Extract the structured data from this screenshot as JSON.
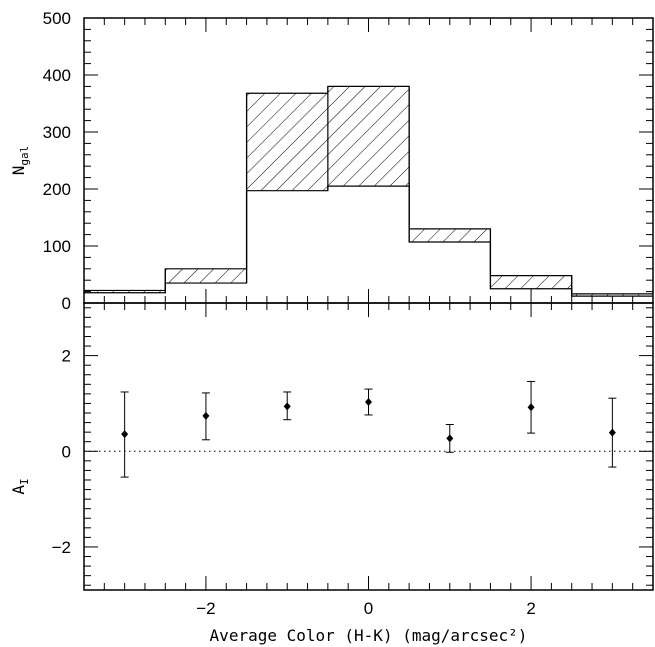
{
  "chart_data": [
    {
      "type": "bar",
      "panel": "top",
      "ylabel": "N",
      "ylabel_sub": "gal",
      "ylim": [
        0,
        500
      ],
      "yticks": [
        0,
        100,
        200,
        300,
        400,
        500
      ],
      "ytick_labels": [
        "0",
        "100",
        "200",
        "300",
        "400",
        "500"
      ],
      "xlim": [
        -3.5,
        3.5
      ],
      "bin_edges": [
        -3.5,
        -2.5,
        -1.5,
        -0.5,
        0.5,
        1.5,
        2.5,
        3.5
      ],
      "series": [
        {
          "values": [
            18,
            35,
            197,
            205,
            107,
            25,
            12
          ]
        },
        {
          "values": [
            22,
            60,
            368,
            380,
            130,
            48,
            16
          ],
          "hatched_above_first": true
        }
      ]
    },
    {
      "type": "scatter",
      "panel": "bottom",
      "xlabel": "Average Color (H-K) (mag/arcsec²)",
      "ylabel": "A",
      "ylabel_sub": "I",
      "xlim": [
        -3.5,
        3.5
      ],
      "ylim": [
        -2.9,
        3.1
      ],
      "xticks": [
        -2,
        0,
        2
      ],
      "xtick_labels": [
        "−2",
        "0",
        "2"
      ],
      "yticks": [
        -2,
        0,
        2
      ],
      "ytick_labels": [
        "−2",
        "0",
        "2"
      ],
      "points": [
        {
          "x": -3,
          "y": 0.36,
          "err_lo": 0.9,
          "err_hi": 0.88
        },
        {
          "x": -2,
          "y": 0.74,
          "err_lo": 0.5,
          "err_hi": 0.48
        },
        {
          "x": -1,
          "y": 0.94,
          "err_lo": 0.28,
          "err_hi": 0.3
        },
        {
          "x": 0,
          "y": 1.03,
          "err_lo": 0.27,
          "err_hi": 0.27
        },
        {
          "x": 1,
          "y": 0.27,
          "err_lo": 0.29,
          "err_hi": 0.29
        },
        {
          "x": 2,
          "y": 0.92,
          "err_lo": 0.54,
          "err_hi": 0.54
        },
        {
          "x": 3,
          "y": 0.39,
          "err_lo": 0.72,
          "err_hi": 0.72
        }
      ],
      "reference_line_y": 0,
      "reference_line_style": "dotted"
    }
  ]
}
